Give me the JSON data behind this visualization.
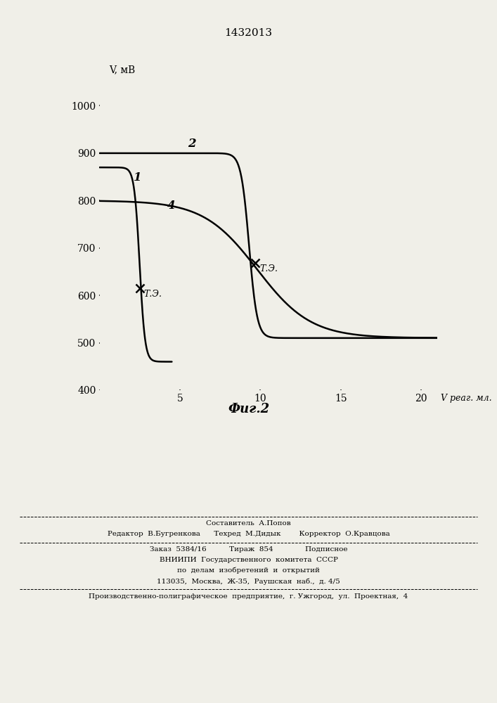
{
  "title": "1432013",
  "ylabel": "V, мВ",
  "fig_caption": "Фиг.2",
  "ylim": [
    400,
    1060
  ],
  "xlim": [
    0,
    21
  ],
  "yticks": [
    400,
    500,
    600,
    700,
    800,
    900,
    1000
  ],
  "xticks": [
    5,
    10,
    15,
    20
  ],
  "curve1_label": "1",
  "curve2_label": "2",
  "curve4_label": "4",
  "teq1_x": 2.5,
  "teq1_y": 615,
  "teq2_x": 9.7,
  "teq2_y": 668,
  "background_color": "#f0efe8"
}
